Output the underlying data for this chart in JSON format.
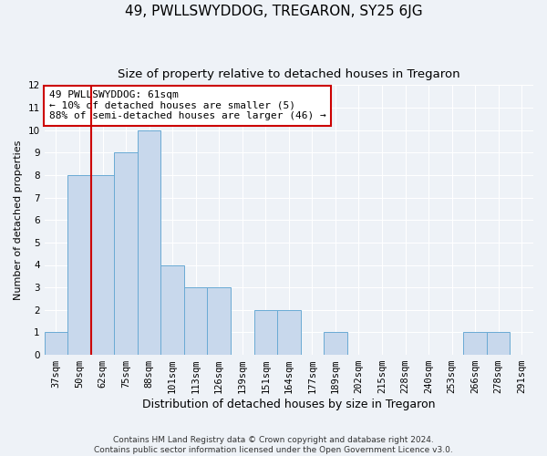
{
  "title": "49, PWLLSWYDDOG, TREGARON, SY25 6JG",
  "subtitle": "Size of property relative to detached houses in Tregaron",
  "xlabel": "Distribution of detached houses by size in Tregaron",
  "ylabel": "Number of detached properties",
  "categories": [
    "37sqm",
    "50sqm",
    "62sqm",
    "75sqm",
    "88sqm",
    "101sqm",
    "113sqm",
    "126sqm",
    "139sqm",
    "151sqm",
    "164sqm",
    "177sqm",
    "189sqm",
    "202sqm",
    "215sqm",
    "228sqm",
    "240sqm",
    "253sqm",
    "266sqm",
    "278sqm",
    "291sqm"
  ],
  "values": [
    1,
    8,
    8,
    9,
    10,
    4,
    3,
    3,
    0,
    2,
    2,
    0,
    1,
    0,
    0,
    0,
    0,
    0,
    1,
    1,
    0
  ],
  "bar_color": "#c8d8ec",
  "bar_edge_color": "#6aaad4",
  "property_line_color": "#cc0000",
  "property_line_index": 2,
  "annotation_text": "49 PWLLSWYDDOG: 61sqm\n← 10% of detached houses are smaller (5)\n88% of semi-detached houses are larger (46) →",
  "annotation_box_facecolor": "white",
  "annotation_box_edgecolor": "#cc0000",
  "ylim": [
    0,
    12
  ],
  "yticks": [
    0,
    1,
    2,
    3,
    4,
    5,
    6,
    7,
    8,
    9,
    10,
    11,
    12
  ],
  "background_color": "#eef2f7",
  "grid_color": "white",
  "title_fontsize": 11,
  "subtitle_fontsize": 9.5,
  "xlabel_fontsize": 9,
  "ylabel_fontsize": 8,
  "tick_fontsize": 7.5,
  "annotation_fontsize": 8,
  "footnote1": "Contains HM Land Registry data © Crown copyright and database right 2024.",
  "footnote2": "Contains public sector information licensed under the Open Government Licence v3.0.",
  "footnote_fontsize": 6.5
}
